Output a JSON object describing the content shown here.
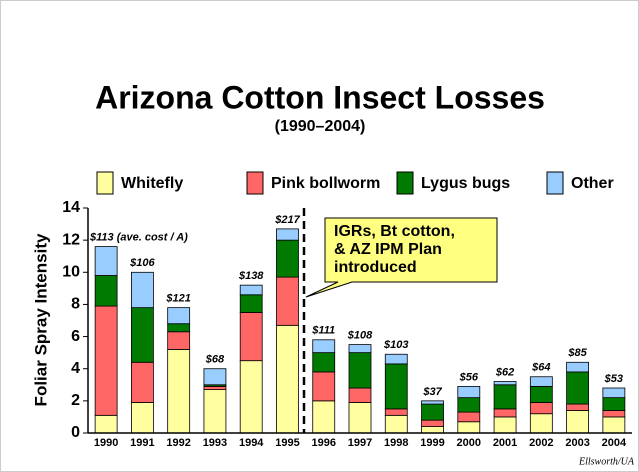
{
  "chart_data": {
    "type": "stacked_bar",
    "title": "Arizona Cotton Insect Losses",
    "subtitle": "(1990–2004)",
    "y_label": "Foliar Spray Intensity",
    "categories": [
      "1990",
      "1991",
      "1992",
      "1993",
      "1994",
      "1995",
      "1996",
      "1997",
      "1998",
      "1999",
      "2000",
      "2001",
      "2002",
      "2003",
      "2004"
    ],
    "series": [
      {
        "name": "Whitefly",
        "color": "#ffffa0",
        "values": [
          1.1,
          1.9,
          5.2,
          2.7,
          4.5,
          6.7,
          2.0,
          1.9,
          1.1,
          0.4,
          0.7,
          1.0,
          1.2,
          1.4,
          1.0
        ]
      },
      {
        "name": "Pink bollworm",
        "color": "#ff6666",
        "values": [
          6.8,
          2.5,
          1.1,
          0.2,
          3.0,
          3.0,
          1.8,
          0.9,
          0.4,
          0.4,
          0.6,
          0.5,
          0.7,
          0.4,
          0.4
        ]
      },
      {
        "name": "Lygus bugs",
        "color": "#007a00",
        "values": [
          1.9,
          3.4,
          0.5,
          0.1,
          1.1,
          2.3,
          1.2,
          2.2,
          2.8,
          1.0,
          0.9,
          1.5,
          1.0,
          2.0,
          0.8
        ]
      },
      {
        "name": "Other",
        "color": "#99ccff",
        "values": [
          1.8,
          2.2,
          1.0,
          1.0,
          0.6,
          0.7,
          0.8,
          0.5,
          0.6,
          0.2,
          0.7,
          0.2,
          0.6,
          0.6,
          0.6
        ]
      }
    ],
    "cost_labels": [
      "$113 (ave. cost / A)",
      "$106",
      "$121",
      "$68",
      "$138",
      "$217",
      "$111",
      "$108",
      "$103",
      "$37",
      "$56",
      "$62",
      "$64",
      "$85",
      "$53"
    ],
    "annotation": [
      "IGRs, Bt cotton,",
      "& AZ IPM Plan",
      "introduced"
    ],
    "credit": "Ellsworth/UA",
    "ylim": [
      0,
      14
    ],
    "yticks": [
      0,
      2,
      4,
      6,
      8,
      10,
      12,
      14
    ]
  }
}
